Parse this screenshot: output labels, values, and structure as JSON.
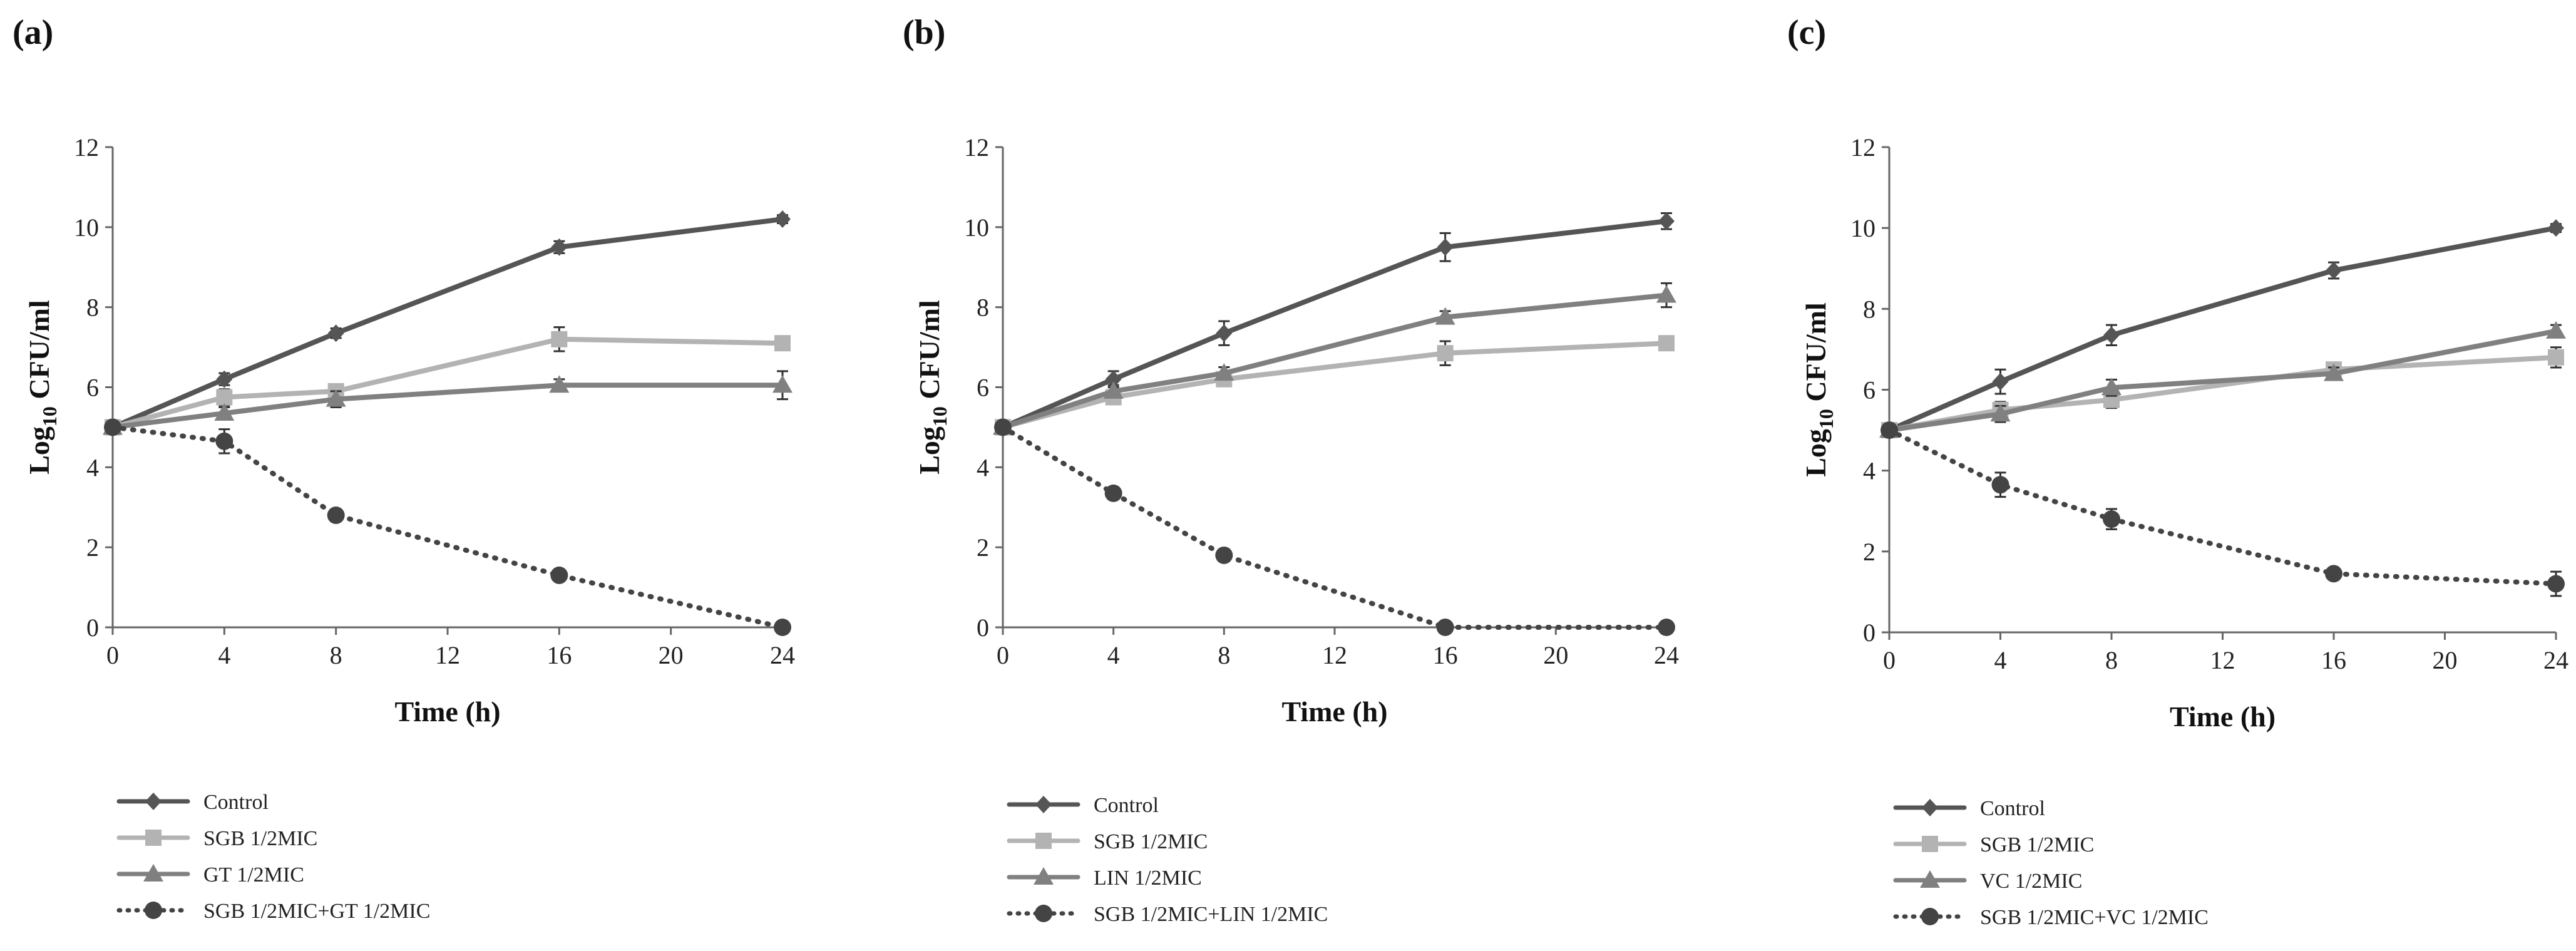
{
  "chart_data": [
    {
      "type": "line",
      "panel_label": "(a)",
      "xlabel": "Time (h)",
      "ylabel": "Log10 CFU/ml",
      "ylabel_main": "Log",
      "ylabel_sub": "10",
      "ylabel_rest": " CFU/ml",
      "x": [
        0,
        4,
        8,
        16,
        24
      ],
      "xlim": [
        0,
        24
      ],
      "xticks": [
        "0",
        "4",
        "8",
        "12",
        "16",
        "20",
        "24"
      ],
      "ylim": [
        0,
        12
      ],
      "yticks": [
        "0",
        "2",
        "4",
        "6",
        "8",
        "10",
        "12"
      ],
      "series": [
        {
          "name": "Control",
          "values": [
            5.0,
            6.2,
            7.35,
            9.5,
            10.2
          ],
          "errors": [
            0.1,
            0.15,
            0.12,
            0.15,
            0.1
          ],
          "color": "#555555",
          "marker": "diamond",
          "dash": "solid"
        },
        {
          "name": "SGB 1/2MIC",
          "values": [
            5.0,
            5.75,
            5.9,
            7.2,
            7.1
          ],
          "errors": [
            0.1,
            0.2,
            0.15,
            0.3,
            0.15
          ],
          "color": "#b3b3b3",
          "marker": "square",
          "dash": "solid"
        },
        {
          "name": "GT 1/2MIC",
          "values": [
            5.0,
            5.35,
            5.7,
            6.05,
            6.05
          ],
          "errors": [
            0.1,
            0.15,
            0.2,
            0.15,
            0.35
          ],
          "color": "#808080",
          "marker": "triangle",
          "dash": "solid"
        },
        {
          "name": "SGB 1/2MIC+GT 1/2MIC",
          "values": [
            5.0,
            4.65,
            2.8,
            1.3,
            0.0
          ],
          "errors": [
            0.1,
            0.3,
            0.15,
            0.1,
            0.0
          ],
          "color": "#444444",
          "marker": "circle",
          "dash": "dotted"
        }
      ]
    },
    {
      "type": "line",
      "panel_label": "(b)",
      "xlabel": "Time (h)",
      "ylabel": "Log10 CFU/ml",
      "ylabel_main": "Log",
      "ylabel_sub": "10",
      "ylabel_rest": " CFU/ml",
      "x": [
        0,
        4,
        8,
        16,
        24
      ],
      "xlim": [
        0,
        24
      ],
      "xticks": [
        "0",
        "4",
        "8",
        "12",
        "16",
        "20",
        "24"
      ],
      "ylim": [
        0,
        12
      ],
      "yticks": [
        "0",
        "2",
        "4",
        "6",
        "8",
        "10",
        "12"
      ],
      "series": [
        {
          "name": "Control",
          "values": [
            5.0,
            6.2,
            7.35,
            9.5,
            10.15
          ],
          "errors": [
            0.1,
            0.2,
            0.3,
            0.35,
            0.2
          ],
          "color": "#555555",
          "marker": "diamond",
          "dash": "solid"
        },
        {
          "name": "SGB 1/2MIC",
          "values": [
            5.0,
            5.75,
            6.2,
            6.85,
            7.1
          ],
          "errors": [
            0.1,
            0.15,
            0.15,
            0.3,
            0.15
          ],
          "color": "#b3b3b3",
          "marker": "square",
          "dash": "solid"
        },
        {
          "name": "LIN 1/2MIC",
          "values": [
            5.0,
            5.9,
            6.35,
            7.75,
            8.3
          ],
          "errors": [
            0.1,
            0.15,
            0.15,
            0.15,
            0.3
          ],
          "color": "#808080",
          "marker": "triangle",
          "dash": "solid"
        },
        {
          "name": "SGB 1/2MIC+LIN 1/2MIC",
          "values": [
            5.0,
            3.35,
            1.8,
            0.0,
            0.0
          ],
          "errors": [
            0.1,
            0.15,
            0.1,
            0.0,
            0.0
          ],
          "color": "#444444",
          "marker": "circle",
          "dash": "dotted"
        }
      ]
    },
    {
      "type": "line",
      "panel_label": "(c)",
      "xlabel": "Time (h)",
      "ylabel": "Log10 CFU/ml",
      "ylabel_main": "Log",
      "ylabel_sub": "10",
      "ylabel_rest": " CFU/ml",
      "x": [
        0,
        4,
        8,
        16,
        24
      ],
      "xlim": [
        0,
        24
      ],
      "xticks": [
        "0",
        "4",
        "8",
        "12",
        "16",
        "20",
        "24"
      ],
      "ylim": [
        0,
        12
      ],
      "yticks": [
        "0",
        "2",
        "4",
        "6",
        "8",
        "10",
        "12"
      ],
      "series": [
        {
          "name": "Control",
          "values": [
            5.0,
            6.2,
            7.35,
            8.95,
            10.0
          ],
          "errors": [
            0.1,
            0.3,
            0.25,
            0.2,
            0.1
          ],
          "color": "#555555",
          "marker": "diamond",
          "dash": "solid"
        },
        {
          "name": "SGB 1/2MIC",
          "values": [
            5.0,
            5.5,
            5.75,
            6.5,
            6.8
          ],
          "errors": [
            0.1,
            0.2,
            0.2,
            0.15,
            0.25
          ],
          "color": "#b3b3b3",
          "marker": "square",
          "dash": "solid"
        },
        {
          "name": "VC 1/2MIC",
          "values": [
            5.0,
            5.4,
            6.05,
            6.4,
            7.45
          ],
          "errors": [
            0.1,
            0.2,
            0.2,
            0.15,
            0.15
          ],
          "color": "#808080",
          "marker": "triangle",
          "dash": "solid"
        },
        {
          "name": "SGB 1/2MIC+VC 1/2MIC",
          "values": [
            5.0,
            3.65,
            2.8,
            1.45,
            1.2
          ],
          "errors": [
            0.1,
            0.3,
            0.25,
            0.1,
            0.3
          ],
          "color": "#444444",
          "marker": "circle",
          "dash": "dotted"
        }
      ]
    }
  ]
}
